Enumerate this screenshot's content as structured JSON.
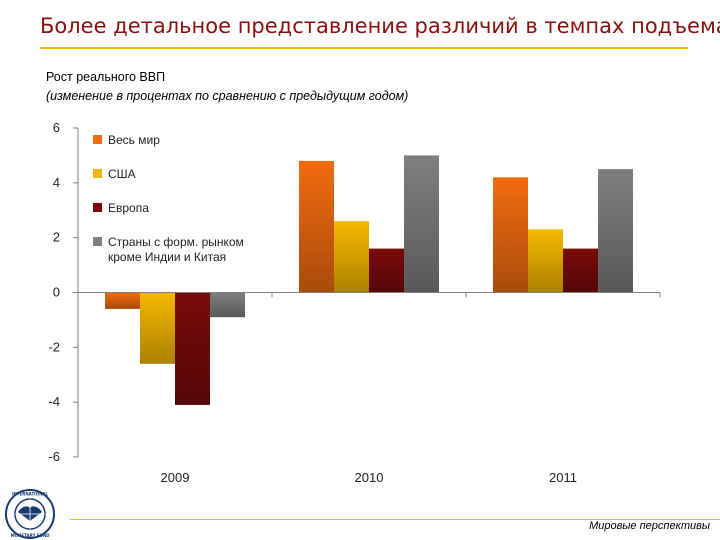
{
  "slide": {
    "title": "Более детальное представление различий в темпах подъема",
    "footer": "Мировые перспективы",
    "logo_text": "INTERNATIONAL MONETARY FUND"
  },
  "colors": {
    "title": "#8a0f0f",
    "accent_rule": "#f0c200"
  },
  "chart_data": {
    "type": "bar",
    "title": "Рост реального ВВП",
    "subtitle": "(изменение в процентах по сравнению с предыдущим годом)",
    "categories": [
      "2009",
      "2010",
      "2011"
    ],
    "ylim": [
      -6,
      6
    ],
    "yticks": [
      6,
      4,
      2,
      0,
      -2,
      -4,
      -6
    ],
    "grid": false,
    "legend_position": "top-left",
    "series": [
      {
        "name": "Весь мир",
        "values": [
          -0.6,
          4.8,
          4.2
        ],
        "color": "#f26b10"
      },
      {
        "name": "США",
        "values": [
          -2.6,
          2.6,
          2.3
        ],
        "color": "#f5b800"
      },
      {
        "name": "Европа",
        "values": [
          -4.1,
          1.6,
          1.6
        ],
        "color": "#7a0a0a"
      },
      {
        "name": "Страны с форм. рынком кроме Индии и Китая",
        "values": [
          -0.9,
          5.0,
          4.5
        ],
        "color": "#7f7f7f"
      }
    ]
  }
}
